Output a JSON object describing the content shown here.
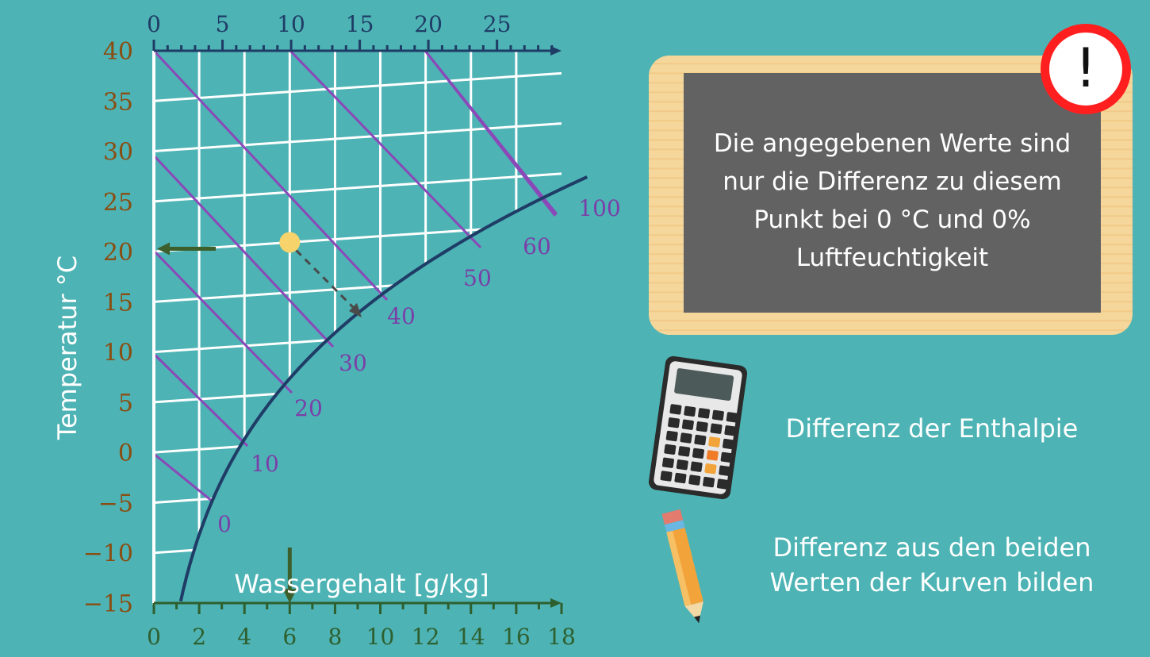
{
  "chart_data": {
    "type": "diagram",
    "y_axis": {
      "label": "Temperatur °C",
      "ticks": [
        "40",
        "35",
        "30",
        "25",
        "20",
        "15",
        "10",
        "5",
        "0",
        "−5",
        "−10",
        "−15"
      ]
    },
    "top_axis": {
      "ticks": [
        "0",
        "5",
        "10",
        "15",
        "20",
        "25"
      ]
    },
    "bottom_axis": {
      "label": "Wassergehalt [g/kg]",
      "ticks": [
        "0",
        "2",
        "4",
        "6",
        "8",
        "10",
        "12",
        "14",
        "16",
        "18"
      ]
    },
    "enthalpy_labels": [
      "0",
      "10",
      "20",
      "30",
      "40",
      "50",
      "60",
      "100"
    ],
    "point": {
      "water_content": 6,
      "temperature": 20
    }
  },
  "board": {
    "lines": [
      "Die angegebenen Werte sind",
      "nur die Differenz zu diesem",
      "Punkt bei 0 °C und 0%",
      "Luftfeuchtigkeit"
    ],
    "warning_symbol": "!"
  },
  "calculator_text": "Differenz der Enthalpie",
  "pencil_text": [
    "Differenz aus den beiden",
    "Werten der Kurven bilden"
  ],
  "icons": [
    "warning-icon",
    "calculator-icon",
    "pencil-icon"
  ],
  "colors": {
    "background": "#4db3b4",
    "curve": "#1f3c66",
    "enthalpy_lines": "#8b48b8",
    "point": "#f7d36b",
    "arrows": "#3d5f2c"
  }
}
